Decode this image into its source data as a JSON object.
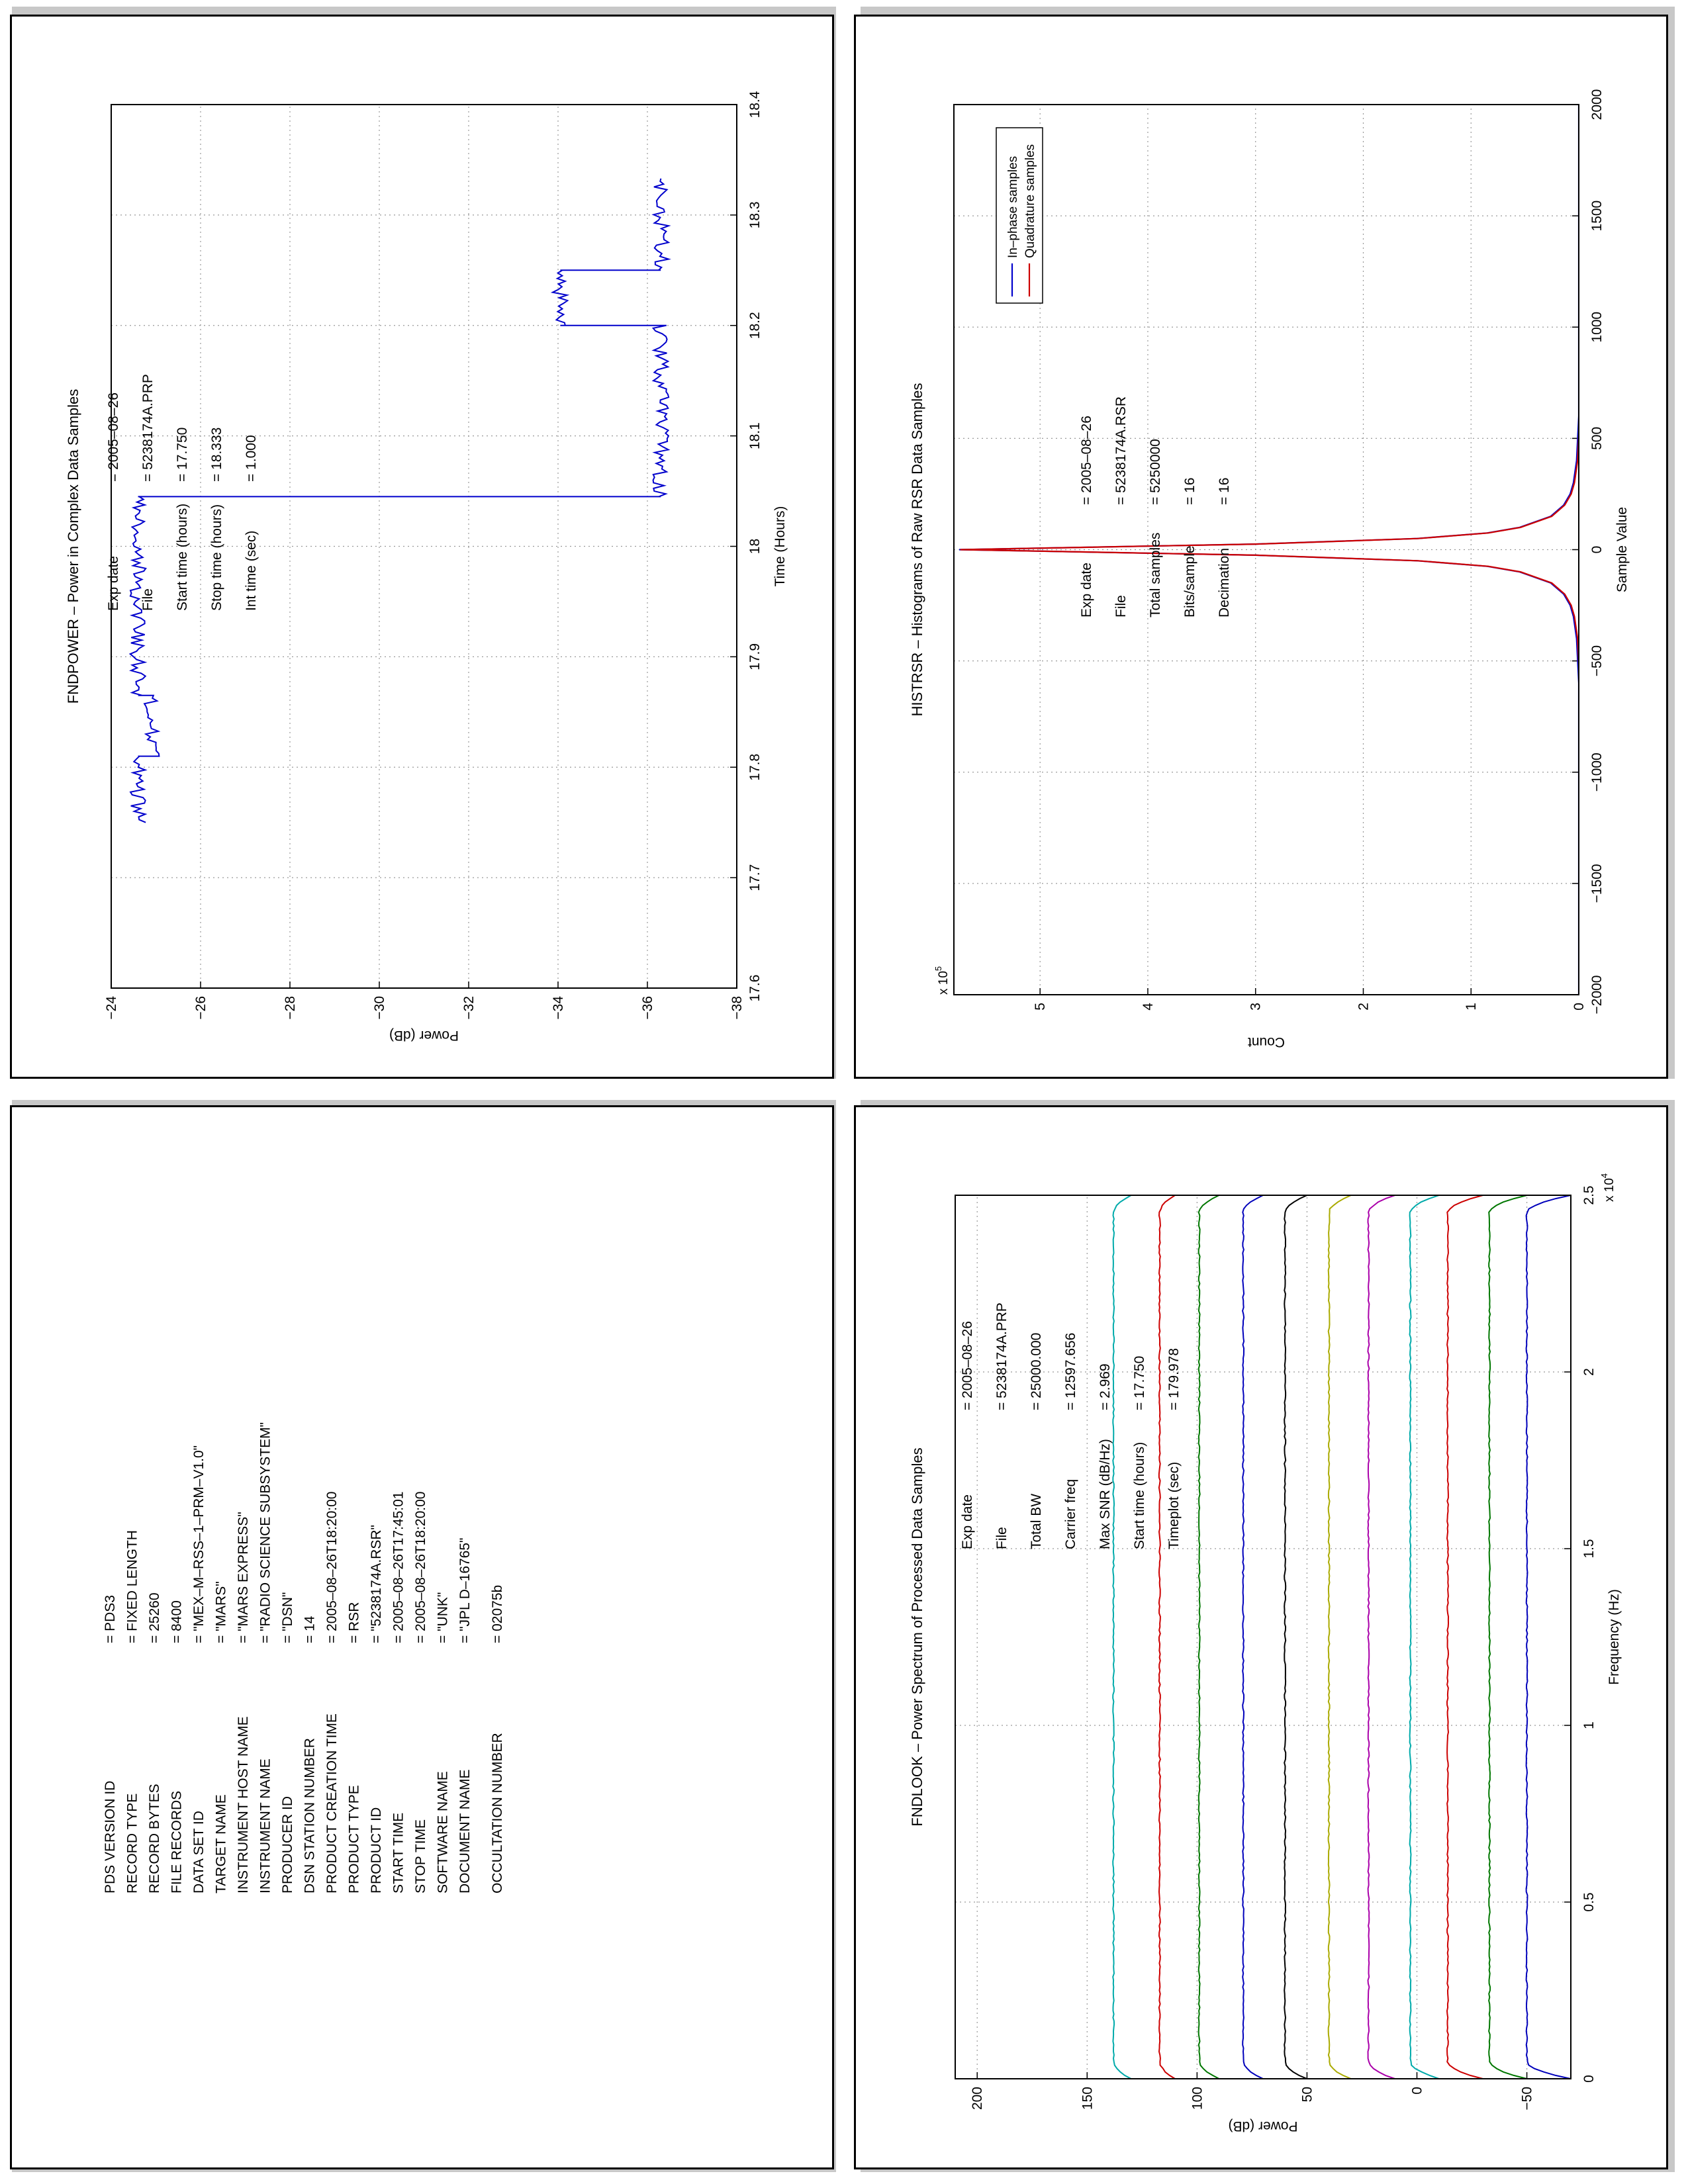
{
  "chart_data": [
    {
      "type": "line",
      "title": "HISTRSR – Histograms of Raw RSR Data Samples",
      "xlabel": "Sample Value",
      "ylabel": "Count",
      "y_multiplier": "x 10^5",
      "y_multiplier_base": "x 10",
      "y_multiplier_exp": "5",
      "xlim": [
        -2000,
        2000
      ],
      "ylim": [
        0,
        5.8
      ],
      "xticks": [
        "−2000",
        "−1500",
        "−1000",
        "−500",
        "0",
        "500",
        "1000",
        "1500",
        "2000"
      ],
      "yticks": [
        "0",
        "1",
        "2",
        "3",
        "4",
        "5"
      ],
      "grid": true,
      "legend": "top-right",
      "series": [
        {
          "name": "In–phase samples",
          "color": "#0000cc",
          "x": [
            -2000,
            -600,
            -400,
            -300,
            -250,
            -200,
            -150,
            -100,
            -75,
            -50,
            -25,
            0,
            25,
            50,
            75,
            100,
            150,
            200,
            250,
            300,
            400,
            600,
            2000
          ],
          "y": [
            0,
            0,
            0.02,
            0.05,
            0.08,
            0.14,
            0.26,
            0.55,
            0.85,
            1.5,
            3.0,
            5.75,
            3.0,
            1.5,
            0.85,
            0.55,
            0.26,
            0.14,
            0.08,
            0.05,
            0.02,
            0,
            0
          ]
        },
        {
          "name": "Quadrature samples",
          "color": "#cc0000",
          "x": [
            -2000,
            -600,
            -400,
            -300,
            -250,
            -200,
            -150,
            -100,
            -75,
            -50,
            -25,
            0,
            25,
            50,
            75,
            100,
            150,
            200,
            250,
            300,
            400,
            600,
            2000
          ],
          "y": [
            0,
            0,
            0.02,
            0.05,
            0.08,
            0.14,
            0.26,
            0.55,
            0.85,
            1.5,
            3.0,
            5.75,
            3.0,
            1.5,
            0.85,
            0.55,
            0.26,
            0.14,
            0.08,
            0.05,
            0.02,
            0,
            0
          ]
        }
      ],
      "annotations": [
        {
          "label": "Exp date",
          "value": "= 2005–08–26"
        },
        {
          "label": "File",
          "value": "= 5238174A.RSR"
        },
        {
          "label": "Total samples",
          "value": "= 5250000"
        },
        {
          "label": "Bits/sample",
          "value": "= 16"
        },
        {
          "label": "Decimation",
          "value": "= 16"
        }
      ]
    },
    {
      "type": "line",
      "title": "FNDPOWER – Power in Complex Data Samples",
      "xlabel": "Time (Hours)",
      "ylabel": "Power (dB)",
      "xlim": [
        17.6,
        18.4
      ],
      "ylim": [
        -38,
        -24
      ],
      "xticks": [
        "17.6",
        "17.7",
        "17.8",
        "17.9",
        "18",
        "18.1",
        "18.2",
        "18.3",
        "18.4"
      ],
      "yticks": [
        "−38",
        "−36",
        "−34",
        "−32",
        "−30",
        "−28",
        "−26",
        "−24"
      ],
      "grid": true,
      "series": [
        {
          "name": "",
          "color": "#0000cc",
          "x": [
            17.75,
            17.81,
            17.81,
            17.865,
            17.865,
            18.045,
            18.045,
            18.2,
            18.2,
            18.25,
            18.25,
            18.333
          ],
          "y": [
            -24.6,
            -24.6,
            -24.9,
            -24.9,
            -24.6,
            -24.6,
            -36.3,
            -36.3,
            -34.05,
            -34.05,
            -36.3,
            -36.3
          ]
        }
      ],
      "annotations": [
        {
          "label": "Exp date",
          "value": "= 2005–08–26"
        },
        {
          "label": "File",
          "value": "= 5238174A.PRP"
        },
        {
          "label": "Start time (hours)",
          "value": "= 17.750"
        },
        {
          "label": "Stop time (hours)",
          "value": "= 18.333"
        },
        {
          "label": "Int time (sec)",
          "value": "= 1.000"
        }
      ]
    },
    {
      "type": "line",
      "title": "FNDLOOK – Power Spectrum of Processed Data Samples",
      "xlabel": "Frequency (Hz)",
      "ylabel": "Power (dB)",
      "x_multiplier": "x 10^4",
      "x_multiplier_base": "x 10",
      "x_multiplier_exp": "4",
      "xlim": [
        0,
        2.5
      ],
      "ylim": [
        -70,
        210
      ],
      "xticks": [
        "0",
        "0.5",
        "1",
        "1.5",
        "2",
        "2.5"
      ],
      "yticks": [
        "−50",
        "0",
        "50",
        "100",
        "150",
        "200"
      ],
      "grid": true,
      "series": [
        {
          "name": "",
          "color": "#0000bb",
          "base": -50,
          "edge": -70
        },
        {
          "name": "",
          "color": "#007700",
          "base": -33,
          "edge": -50
        },
        {
          "name": "",
          "color": "#cc0000",
          "base": -14,
          "edge": -30
        },
        {
          "name": "",
          "color": "#00aaaa",
          "base": 3,
          "edge": -10
        },
        {
          "name": "",
          "color": "#aa00aa",
          "base": 22,
          "edge": 10
        },
        {
          "name": "",
          "color": "#aaaa00",
          "base": 40,
          "edge": 30
        },
        {
          "name": "",
          "color": "#000000",
          "base": 60,
          "edge": 50
        },
        {
          "name": "",
          "color": "#0000bb",
          "base": 79,
          "edge": 70
        },
        {
          "name": "",
          "color": "#007700",
          "base": 99,
          "edge": 90
        },
        {
          "name": "",
          "color": "#cc0000",
          "base": 117,
          "edge": 110
        },
        {
          "name": "",
          "color": "#00aaaa",
          "base": 138,
          "edge": 130
        }
      ],
      "annotations": [
        {
          "label": "Exp date",
          "value": "= 2005–08–26"
        },
        {
          "label": "File",
          "value": "= 5238174A.PRP"
        },
        {
          "label": "Total BW",
          "value": "= 25000.000"
        },
        {
          "label": "Carrier freq",
          "value": "= 12597.656"
        },
        {
          "label": "Max SNR (dB/Hz)",
          "value": "= 2.969"
        },
        {
          "label": "Start time (hours)",
          "value": "= 17.750"
        },
        {
          "label": "Timeplot (sec)",
          "value": "= 179.978"
        }
      ]
    }
  ],
  "pds_label": {
    "rows": [
      {
        "key": "PDS VERSION ID",
        "value": "= PDS3"
      },
      {
        "key": "RECORD TYPE",
        "value": "= FIXED LENGTH"
      },
      {
        "key": "RECORD BYTES",
        "value": "= 25260"
      },
      {
        "key": "FILE RECORDS",
        "value": "= 8400"
      },
      {
        "key": "DATA SET ID",
        "value": "= \"MEX–M–RSS–1–PRM–V1.0\""
      },
      {
        "key": "TARGET NAME",
        "value": "= \"MARS\""
      },
      {
        "key": "INSTRUMENT HOST NAME",
        "value": "= \"MARS EXPRESS\""
      },
      {
        "key": "INSTRUMENT NAME",
        "value": "= \"RADIO SCIENCE SUBSYSTEM\""
      },
      {
        "key": "PRODUCER ID",
        "value": "= \"DSN\""
      },
      {
        "key": "DSN STATION NUMBER",
        "value": "= 14"
      },
      {
        "key": "PRODUCT CREATION TIME",
        "value": "= 2005–08–26T18:20:00"
      },
      {
        "key": "PRODUCT TYPE",
        "value": "= RSR"
      },
      {
        "key": "PRODUCT ID",
        "value": "= \"5238174A.RSR\""
      },
      {
        "key": "START TIME",
        "value": "= 2005–08–26T17:45:01"
      },
      {
        "key": "STOP TIME",
        "value": "= 2005–08–26T18:20:00"
      },
      {
        "key": "SOFTWARE NAME",
        "value": "= \"UNK\""
      },
      {
        "key": "DOCUMENT NAME",
        "value": "= \"JPL D–16765\""
      }
    ],
    "occultation": {
      "key": "OCCULTATION NUMBER",
      "value": "= 02075b"
    }
  }
}
